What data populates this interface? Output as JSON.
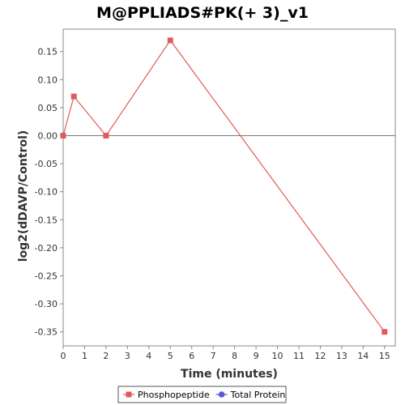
{
  "chart_data": {
    "type": "line",
    "title": "M@PPLIADS#PK(+ 3)_v1",
    "xlabel": "Time (minutes)",
    "ylabel": "log2(dDAVP/Control)",
    "xlim": [
      0,
      15.5
    ],
    "ylim": [
      -0.375,
      0.19
    ],
    "x_ticks": [
      0,
      1,
      2,
      3,
      4,
      5,
      6,
      7,
      8,
      9,
      10,
      11,
      12,
      13,
      14,
      15
    ],
    "y_ticks": [
      0.15,
      0.1,
      0.05,
      0.0,
      -0.05,
      -0.1,
      -0.15,
      -0.2,
      -0.25,
      -0.3,
      -0.35
    ],
    "y_tick_labels": [
      "0.15",
      "0.10",
      "0.05",
      "0.00",
      "-0.05",
      "-0.10",
      "-0.15",
      "-0.20",
      "-0.25",
      "-0.30",
      "-0.35"
    ],
    "zero_line": true,
    "grid": false,
    "legend_position": "bottom",
    "series": [
      {
        "name": "Phosphopeptide",
        "color": "#e05a5a",
        "marker": "square",
        "x": [
          0,
          0.5,
          2,
          5,
          15
        ],
        "y": [
          0.0,
          0.07,
          0.0,
          0.17,
          -0.35
        ]
      }
    ],
    "legend": [
      {
        "name": "Phosphopeptide",
        "color": "#e05a5a",
        "marker": "square"
      },
      {
        "name": "Total Protein",
        "color": "#5a5ae0",
        "marker": "circle"
      }
    ]
  }
}
